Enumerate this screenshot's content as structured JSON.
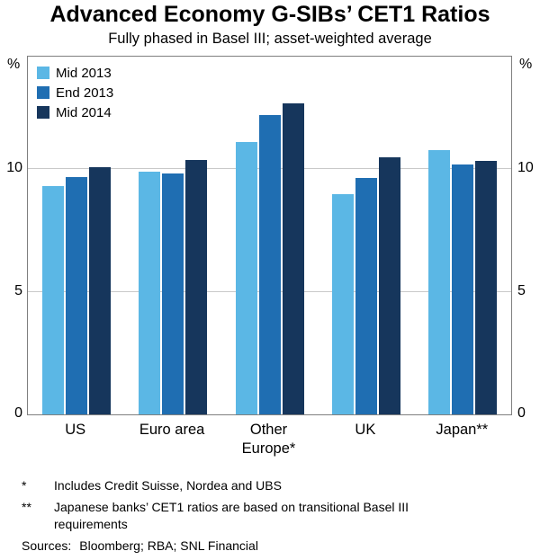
{
  "title": "Advanced Economy G-SIBs’ CET1 Ratios",
  "subtitle": "Fully phased in Basel III; asset-weighted average",
  "chart_data": {
    "type": "bar",
    "categories": [
      "US",
      "Euro area",
      "Other\nEurope*",
      "UK",
      "Japan**"
    ],
    "series": [
      {
        "name": "Mid 2013",
        "color": "#5bb7e5",
        "values": [
          9.3,
          9.9,
          11.1,
          9.0,
          10.8
        ]
      },
      {
        "name": "End 2013",
        "color": "#1f6eb2",
        "values": [
          9.7,
          9.85,
          12.2,
          9.65,
          10.2
        ]
      },
      {
        "name": "Mid 2014",
        "color": "#16365c",
        "values": [
          10.1,
          10.4,
          12.7,
          10.5,
          10.35
        ]
      }
    ],
    "ylabel_unit": "%",
    "yticks": [
      0,
      5,
      10
    ],
    "ylim": [
      0,
      14.6
    ],
    "grid": true,
    "legend_position": "top-left"
  },
  "footnotes": [
    {
      "marker": "*",
      "text": "Includes Credit Suisse, Nordea and UBS"
    },
    {
      "marker": "**",
      "text": "Japanese banks’ CET1 ratios are based on transitional Basel III\nrequirements"
    }
  ],
  "sources_label": "Sources:",
  "sources_text": "Bloomberg; RBA; SNL Financial"
}
